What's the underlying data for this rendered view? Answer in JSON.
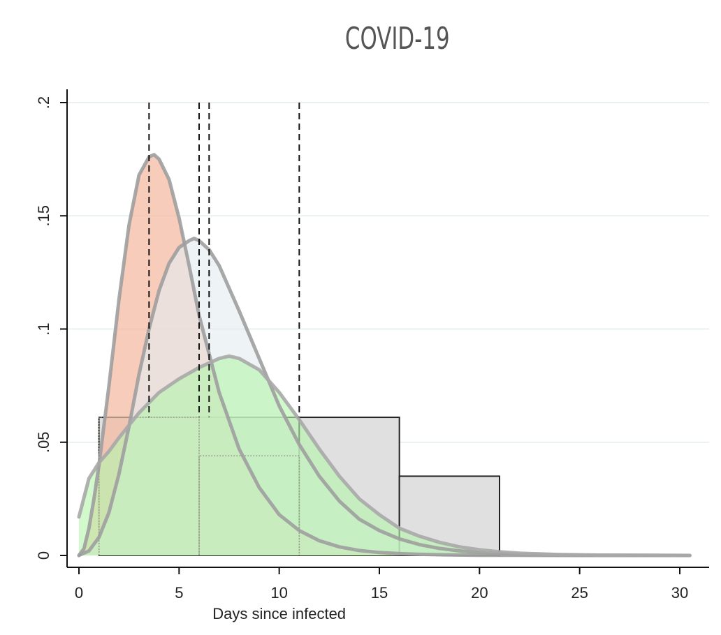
{
  "chart_data": {
    "type": "area",
    "title": "COVID-19",
    "xlabel": "Days since infected",
    "ylabel": "",
    "xlim": [
      0,
      31
    ],
    "ylim": [
      0,
      0.2
    ],
    "x_ticks": [
      0,
      5,
      10,
      15,
      20,
      25,
      30
    ],
    "x_tick_labels": [
      "0",
      "5",
      "10",
      "15",
      "20",
      "25",
      "30"
    ],
    "y_ticks": [
      0,
      0.05,
      0.1,
      0.15,
      0.2
    ],
    "y_tick_labels": [
      "0",
      ".05",
      ".1",
      ".15",
      ".2"
    ],
    "grid": true,
    "vertical_reference_lines": [
      3.5,
      6.0,
      6.5,
      11.0
    ],
    "histogram_bins": [
      {
        "x0": 1,
        "x1": 6,
        "value": 0.061
      },
      {
        "x0": 6,
        "x1": 11,
        "value": 0.061
      },
      {
        "x0": 11,
        "x1": 16,
        "value": 0.061
      },
      {
        "x0": 16,
        "x1": 21,
        "value": 0.035
      }
    ],
    "step_dotted_bins": [
      {
        "x0": 1,
        "x1": 6,
        "value": 0.061
      },
      {
        "x0": 6,
        "x1": 11,
        "value": 0.044
      }
    ],
    "series": [
      {
        "color": "#f5b8a0",
        "x": [
          0,
          0.25,
          0.5,
          0.75,
          1,
          1.5,
          2,
          2.5,
          3,
          3.5,
          3.75,
          4,
          4.5,
          5,
          5.5,
          6,
          7,
          8,
          9,
          10,
          11,
          12,
          13,
          14,
          15,
          16,
          17,
          18,
          20,
          22,
          25,
          30.5
        ],
        "values": [
          0,
          0.003,
          0.012,
          0.025,
          0.04,
          0.075,
          0.113,
          0.146,
          0.168,
          0.176,
          0.177,
          0.175,
          0.166,
          0.149,
          0.128,
          0.106,
          0.072,
          0.047,
          0.03,
          0.018,
          0.011,
          0.0065,
          0.0038,
          0.0022,
          0.0013,
          0.0008,
          0.0005,
          0.0003,
          0.0001,
          5e-05,
          1e-05,
          0
        ]
      },
      {
        "color": "#e4ecf0",
        "x": [
          0,
          0.5,
          1,
          1.5,
          2,
          2.5,
          3,
          3.5,
          4,
          4.5,
          5,
          5.5,
          5.75,
          6,
          6.5,
          7,
          7.5,
          8,
          9,
          10,
          11,
          12,
          13,
          14,
          15,
          16,
          17,
          18,
          19,
          20,
          22,
          25,
          30.5
        ],
        "values": [
          0,
          0.002,
          0.008,
          0.019,
          0.036,
          0.057,
          0.08,
          0.1,
          0.117,
          0.129,
          0.136,
          0.139,
          0.14,
          0.139,
          0.135,
          0.128,
          0.118,
          0.108,
          0.087,
          0.066,
          0.049,
          0.035,
          0.024,
          0.016,
          0.011,
          0.0073,
          0.0048,
          0.0031,
          0.002,
          0.0013,
          0.0005,
          0.00012,
          0
        ]
      },
      {
        "color": "#b4f5ac",
        "x": [
          0,
          0.5,
          1,
          1.5,
          2,
          3,
          4,
          5,
          6,
          7,
          7.5,
          8,
          9,
          10,
          11,
          12,
          13,
          14,
          15,
          16,
          17,
          18,
          19,
          20,
          21,
          22,
          24,
          26,
          30.5
        ],
        "values": [
          0.017,
          0.034,
          0.041,
          0.046,
          0.052,
          0.063,
          0.072,
          0.078,
          0.083,
          0.087,
          0.088,
          0.087,
          0.082,
          0.072,
          0.06,
          0.047,
          0.035,
          0.025,
          0.018,
          0.012,
          0.0085,
          0.0058,
          0.0038,
          0.0025,
          0.0016,
          0.001,
          0.0004,
          0.00015,
          0
        ]
      }
    ]
  }
}
